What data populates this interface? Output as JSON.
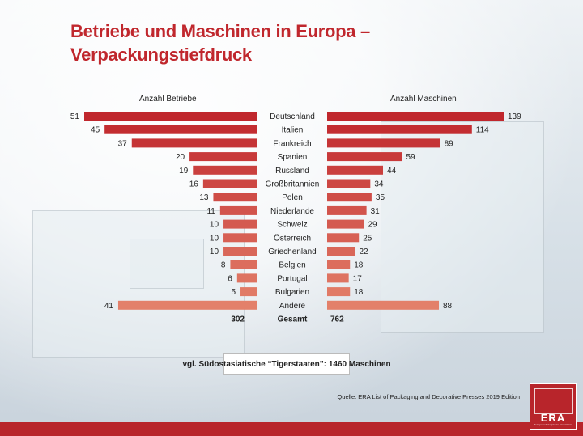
{
  "title_line1": "Betriebe und Maschinen in Europa –",
  "title_line2": "Verpackungstiefdruck",
  "note": "vgl. Südostasiatische “Tigerstaaten”: 1460 Maschinen",
  "source": "Quelle: ERA List of Packaging and Decorative Presses 2019 Edition",
  "logo": {
    "text": "ERA",
    "subtext": "European Rotogravure Association"
  },
  "colors": {
    "title": "#c0272d",
    "bar_dark": "#c0272d",
    "bar_light": "#e3806a"
  },
  "chart_data": {
    "type": "bar",
    "orientation": "horizontal-butterfly",
    "left_header": "Anzahl Betriebe",
    "right_header": "Anzahl Maschinen",
    "categories": [
      "Deutschland",
      "Italien",
      "Frankreich",
      "Spanien",
      "Russland",
      "Großbritannien",
      "Polen",
      "Niederlande",
      "Schweiz",
      "Österreich",
      "Griechenland",
      "Belgien",
      "Portugal",
      "Bulgarien",
      "Andere"
    ],
    "series": [
      {
        "name": "Anzahl Betriebe",
        "values": [
          51,
          45,
          37,
          20,
          19,
          16,
          13,
          11,
          10,
          10,
          10,
          8,
          6,
          5,
          41
        ]
      },
      {
        "name": "Anzahl Maschinen",
        "values": [
          139,
          114,
          89,
          59,
          44,
          34,
          35,
          31,
          29,
          25,
          22,
          18,
          17,
          18,
          88
        ]
      }
    ],
    "total_label": "Gesamt",
    "totals": {
      "betriebe": "302",
      "maschinen": "762"
    }
  }
}
